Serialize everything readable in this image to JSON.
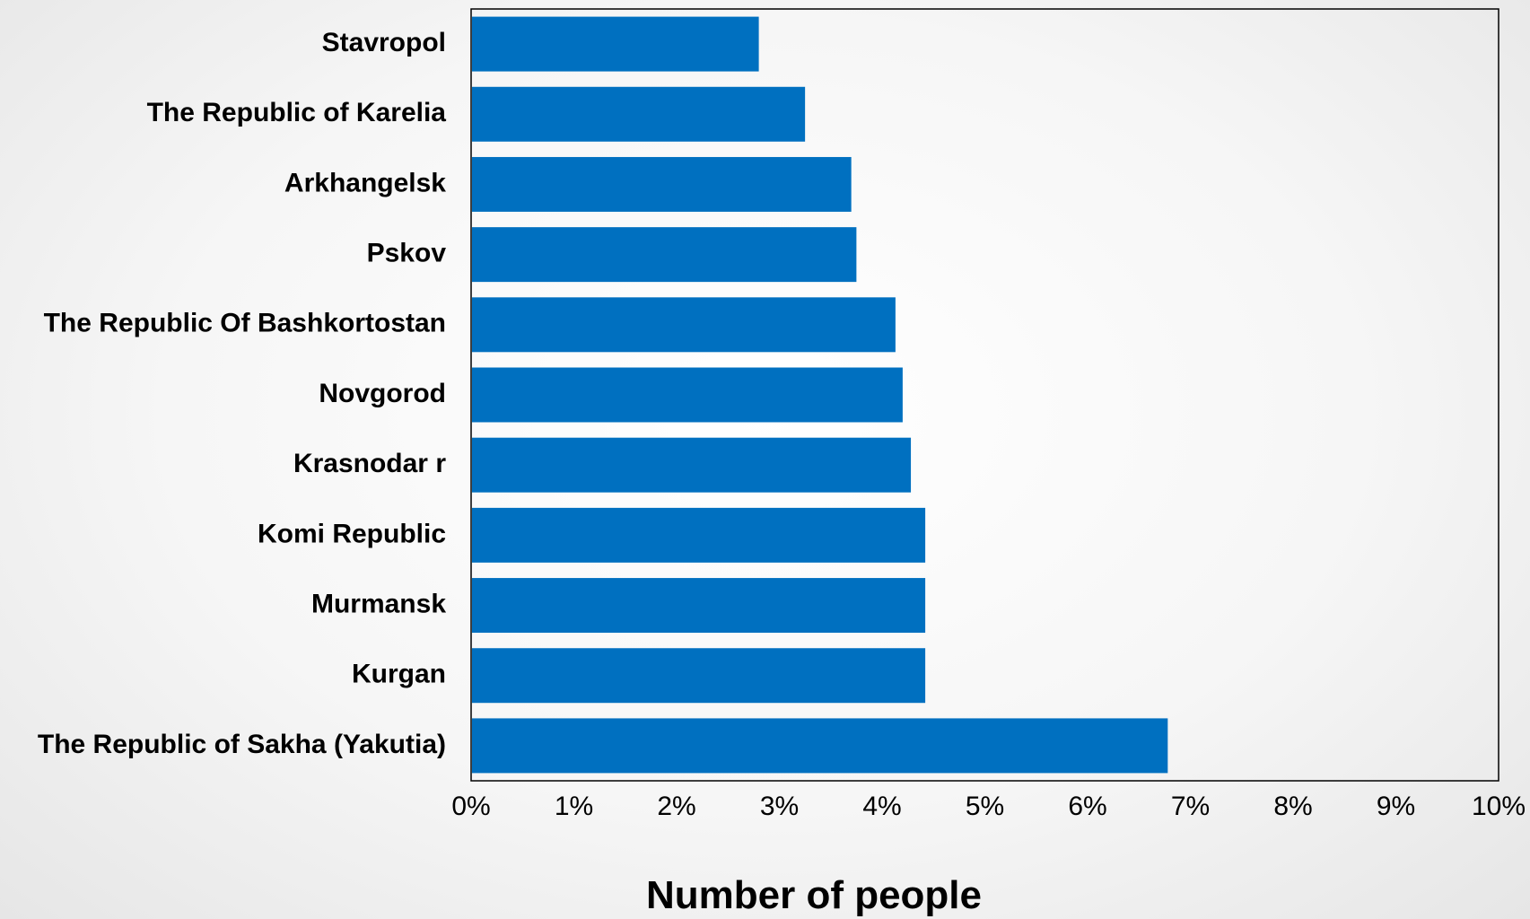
{
  "chart_data": {
    "type": "bar",
    "orientation": "horizontal",
    "categories": [
      "Stavropol",
      "The Republic of Karelia",
      "Arkhangelsk",
      "Pskov",
      "The Republic Of Bashkortostan",
      "Novgorod",
      "Krasnodar r",
      "Komi Republic",
      "Murmansk",
      "Kurgan",
      "The Republic of Sakha (Yakutia)"
    ],
    "values": [
      2.8,
      3.25,
      3.7,
      3.75,
      4.13,
      4.2,
      4.28,
      4.42,
      4.42,
      4.42,
      6.78
    ],
    "xlabel": "Number of people",
    "ylabel": "",
    "xlim": [
      0,
      10
    ],
    "xticks": [
      "0%",
      "1%",
      "2%",
      "3%",
      "4%",
      "5%",
      "6%",
      "7%",
      "8%",
      "9%",
      "10%"
    ],
    "bar_color": "#0070C0",
    "grid": false
  }
}
